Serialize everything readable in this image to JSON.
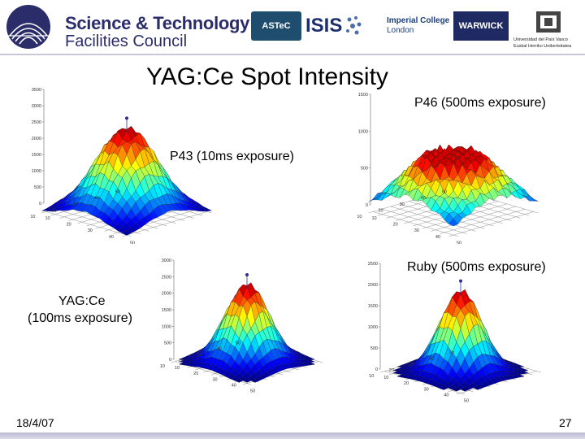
{
  "header": {
    "org_line1": "Science & Technology",
    "org_line2": "Facilities Council",
    "partners": {
      "astec": "ASTeC",
      "isis": "ISIS",
      "imperial_line1": "Imperial College",
      "imperial_line2": "London",
      "warwick": "WARWICK",
      "ehu_left": "Universidad del País Vasco",
      "ehu_right": "Euskal Herriko Unibertsitatea"
    }
  },
  "title": "YAG:Ce Spot Intensity",
  "captions": {
    "p46": "P46 (500ms exposure)",
    "p43": "P43 (10ms exposure)",
    "ruby": "Ruby (500ms exposure)",
    "yag_line1": "YAG:Ce",
    "yag_line2": "(100ms exposure)"
  },
  "plots": {
    "top_left": {
      "z_ticks": [
        "3500",
        "3000",
        "2500",
        "2000",
        "1500",
        "1000",
        "500",
        "0"
      ],
      "x_ticks": [
        "50",
        "40",
        "30",
        "20",
        "10"
      ],
      "y_ticks": [
        "10",
        "20",
        "30",
        "40",
        "50"
      ]
    },
    "top_right": {
      "z_ticks": [
        "1500",
        "1000",
        "500",
        "0"
      ],
      "x_ticks": [
        "50",
        "40",
        "30",
        "20",
        "10"
      ],
      "y_ticks": [
        "10",
        "20",
        "30",
        "40",
        "50"
      ]
    },
    "bottom_left": {
      "z_ticks": [
        "3000",
        "2500",
        "2000",
        "1500",
        "1000",
        "500",
        "0"
      ],
      "x_ticks": [
        "50",
        "40",
        "30",
        "20",
        "10"
      ],
      "y_ticks": [
        "10",
        "20",
        "30",
        "40",
        "50"
      ]
    },
    "bottom_right": {
      "z_ticks": [
        "2500",
        "2000",
        "1500",
        "1000",
        "500",
        "0"
      ],
      "x_ticks": [
        "50",
        "40",
        "30",
        "20",
        "10"
      ],
      "y_ticks": [
        "10",
        "20",
        "30",
        "40",
        "50"
      ]
    }
  },
  "footer": {
    "date": "18/4/07",
    "page_number": "27"
  },
  "colors": {
    "brand_navy": "#2b2d6b",
    "footer_bar": "#c4c4da"
  }
}
